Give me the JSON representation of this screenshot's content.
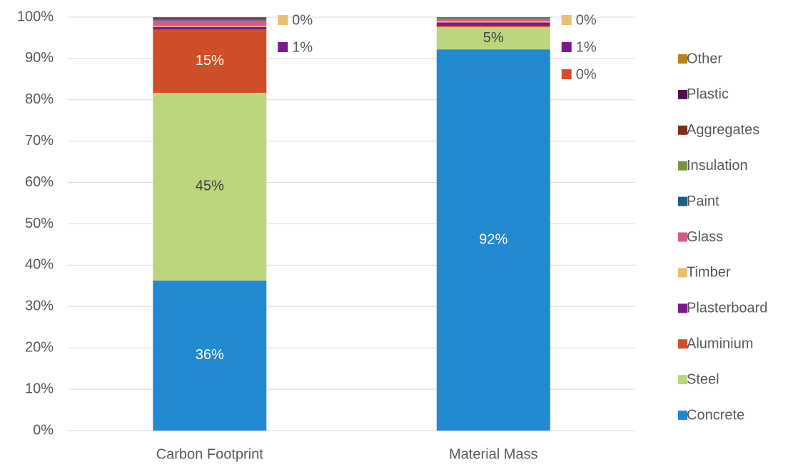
{
  "chart_data": {
    "type": "stacked_bar",
    "categories": [
      "Carbon Footprint",
      "Material Mass"
    ],
    "ylim": [
      0,
      100
    ],
    "yticks": [
      {
        "value": 0,
        "label": "0%"
      },
      {
        "value": 10,
        "label": "10%"
      },
      {
        "value": 20,
        "label": "20%"
      },
      {
        "value": 30,
        "label": "30%"
      },
      {
        "value": 40,
        "label": "40%"
      },
      {
        "value": 50,
        "label": "50%"
      },
      {
        "value": 60,
        "label": "60%"
      },
      {
        "value": 70,
        "label": "70%"
      },
      {
        "value": 80,
        "label": "80%"
      },
      {
        "value": 90,
        "label": "90%"
      },
      {
        "value": 100,
        "label": "100%"
      }
    ],
    "grid": true,
    "legend": "right",
    "series": [
      {
        "name": "Concrete",
        "color": "#2288d0",
        "values": [
          36.3,
          92.2
        ],
        "value_labels": [
          "36%",
          "92%"
        ]
      },
      {
        "name": "Steel",
        "color": "#bcd67e",
        "values": [
          45.4,
          5.4
        ],
        "value_labels": [
          "45%",
          "5%"
        ]
      },
      {
        "name": "Aluminium",
        "color": "#cf4f28",
        "values": [
          15.3,
          0.3
        ],
        "value_labels": [
          "15%",
          "0%"
        ]
      },
      {
        "name": "Plasterboard",
        "color": "#7b1a8e",
        "values": [
          0.6,
          0.8
        ],
        "value_labels": [
          "1%",
          "1%"
        ]
      },
      {
        "name": "Timber",
        "color": "#e9bf70",
        "values": [
          0.2,
          0.3
        ],
        "value_labels": [
          "0%",
          "0%"
        ]
      },
      {
        "name": "Glass",
        "color": "#d9598a",
        "values": [
          1.4,
          0.5
        ],
        "value_labels": [
          null,
          null
        ]
      },
      {
        "name": "Paint",
        "color": "#1d5c84",
        "values": [
          0.2,
          0.1
        ],
        "value_labels": [
          null,
          null
        ]
      },
      {
        "name": "Insulation",
        "color": "#77933c",
        "values": [
          0.1,
          0.1
        ],
        "value_labels": [
          null,
          null
        ]
      },
      {
        "name": "Aggregates",
        "color": "#7a2f1c",
        "values": [
          0.2,
          0.1
        ],
        "value_labels": [
          null,
          null
        ]
      },
      {
        "name": "Plastic",
        "color": "#4b0f4f",
        "values": [
          0.2,
          0.1
        ],
        "value_labels": [
          null,
          null
        ]
      },
      {
        "name": "Other",
        "color": "#b5841f",
        "values": [
          0.1,
          0.1
        ],
        "value_labels": [
          null,
          null
        ]
      }
    ]
  }
}
